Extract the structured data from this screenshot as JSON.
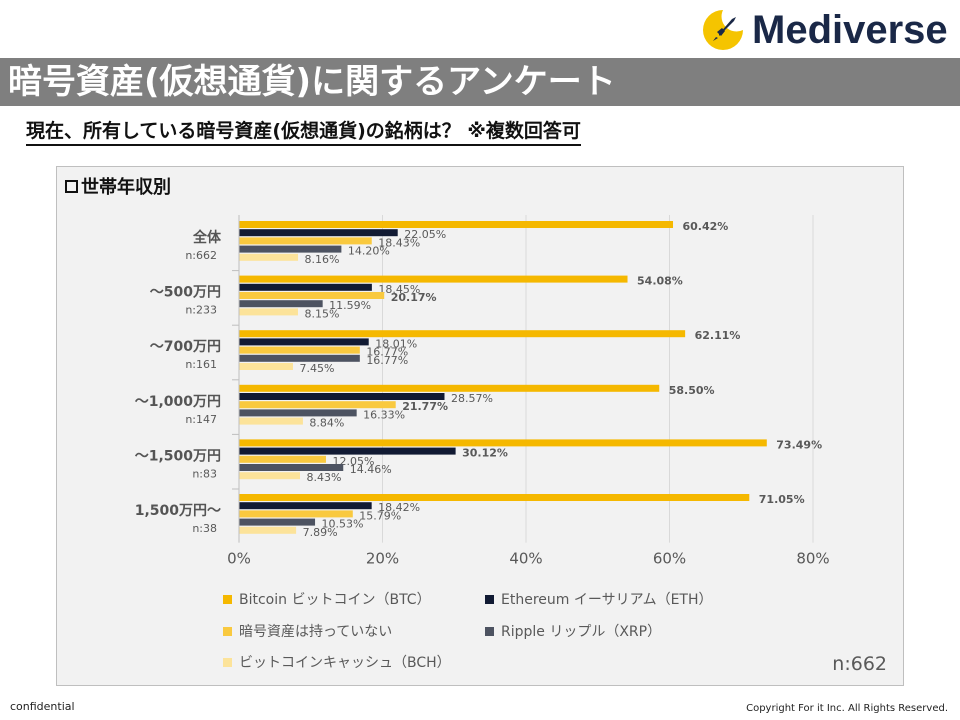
{
  "logo": {
    "text": "Mediverse",
    "icon": "rocket-moon-icon",
    "accent": "#f5c400",
    "brand": "#1a2847"
  },
  "title": "暗号資産(仮想通貨)に関するアンケート",
  "subtitle": "現在、所有している暗号資産(仮想通貨)の銘柄は？ ※複数回答可",
  "panel_label": "世帯年収別",
  "n_total": "n:662",
  "footer": {
    "left": "confidential",
    "right": "Copyright For it Inc. All Rights Reserved."
  },
  "chart_data": {
    "type": "bar",
    "orientation": "horizontal",
    "xlim": [
      0,
      80
    ],
    "xticks": [
      "0%",
      "20%",
      "40%",
      "60%",
      "80%"
    ],
    "xtick_values": [
      0,
      20,
      40,
      60,
      80
    ],
    "categories": [
      "全体",
      "～500万円",
      "～700万円",
      "～1,000万円",
      "～1,500万円",
      "1,500万円～"
    ],
    "category_n": [
      "n:662",
      "n:233",
      "n:161",
      "n:147",
      "n:83",
      "n:38"
    ],
    "series": [
      {
        "name": "Bitcoin ビットコイン（BTC）",
        "color": "#f5b800",
        "values": [
          60.42,
          54.08,
          62.11,
          58.5,
          73.49,
          71.05
        ],
        "labels": [
          "60.42%",
          "54.08%",
          "62.11%",
          "58.50%",
          "73.49%",
          "71.05%"
        ]
      },
      {
        "name": "Ethereum イーサリアム（ETH）",
        "color": "#111a33",
        "values": [
          22.05,
          18.45,
          18.01,
          28.57,
          30.12,
          18.42
        ],
        "labels": [
          "22.05%",
          "18.45%",
          "18.01%",
          "28.57%",
          "30.12%",
          "18.42%"
        ]
      },
      {
        "name": "暗号資産は持っていない",
        "color": "#f9c93f",
        "values": [
          18.43,
          20.17,
          16.77,
          21.77,
          12.05,
          15.79
        ],
        "labels": [
          "18.43%",
          "20.17%",
          "16.77%",
          "21.77%",
          "12.05%",
          "15.79%"
        ]
      },
      {
        "name": "Ripple リップル（XRP）",
        "color": "#4d5361",
        "values": [
          14.2,
          11.59,
          16.77,
          16.33,
          14.46,
          10.53
        ],
        "labels": [
          "14.20%",
          "11.59%",
          "16.77%",
          "16.33%",
          "14.46%",
          "10.53%"
        ]
      },
      {
        "name": "ビットコインキャッシュ（BCH）",
        "color": "#fce39a",
        "values": [
          8.16,
          8.15,
          7.45,
          8.84,
          8.43,
          7.89
        ],
        "labels": [
          "8.16%",
          "8.15%",
          "7.45%",
          "8.84%",
          "8.43%",
          "7.89%"
        ]
      }
    ],
    "label_colors": {
      "BTC": "#f5b800",
      "default": "#595959",
      "highlight": "#222222"
    }
  }
}
